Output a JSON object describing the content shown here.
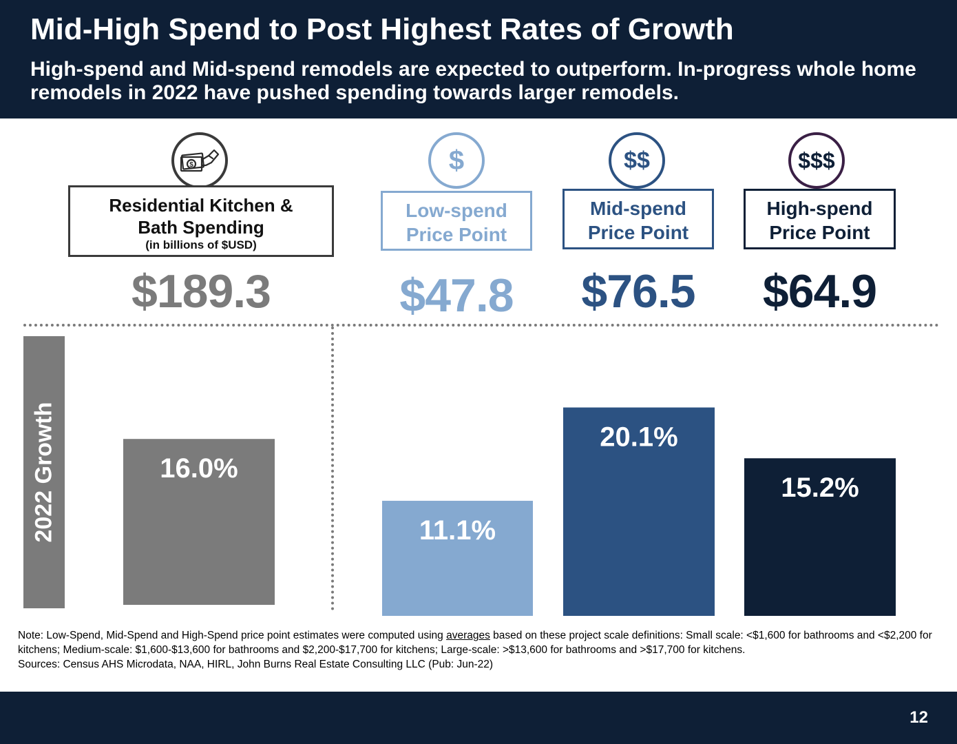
{
  "header": {
    "title": "Mid-High Spend to Post Highest Rates of Growth",
    "subtitle": "High-spend and Mid-spend remodels are expected to outperform. In-progress whole home remodels in 2022 have pushed spending towards larger remodels."
  },
  "colors": {
    "navy": "#0e1f36",
    "gray": "#7b7b7b",
    "low": "#85a9d0",
    "mid": "#2c5282",
    "high": "#0e1f36"
  },
  "categories": [
    {
      "key": "total",
      "icon": "money-hand-icon",
      "label_line1": "Residential Kitchen &",
      "label_line2": "Bath Spending",
      "label_note": "(in billions of $USD)",
      "value": "$189.3"
    },
    {
      "key": "low",
      "icon_text": "$",
      "label_line1": "Low-spend",
      "label_line2": "Price Point",
      "value": "$47.8"
    },
    {
      "key": "mid",
      "icon_text": "$$",
      "label_line1": "Mid-spend",
      "label_line2": "Price Point",
      "value": "$76.5"
    },
    {
      "key": "high",
      "icon_text": "$$$",
      "label_line1": "High-spend",
      "label_line2": "Price Point",
      "value": "$64.9"
    }
  ],
  "growth_label": "2022 Growth",
  "chart_data": {
    "type": "bar",
    "categories": [
      "Residential Kitchen & Bath Spending",
      "Low-spend Price Point",
      "Mid-spend Price Point",
      "High-spend Price Point"
    ],
    "values": [
      16.0,
      11.1,
      20.1,
      15.2
    ],
    "value_labels": [
      "16.0%",
      "11.1%",
      "20.1%",
      "15.2%"
    ],
    "colors": [
      "#7b7b7b",
      "#85a9d0",
      "#2c5282",
      "#0e1f36"
    ],
    "ylim": [
      0,
      26
    ],
    "grid": false
  },
  "note": {
    "prefix": "Note: Low-Spend, Mid-Spend and High-Spend price point estimates were computed using ",
    "underlined": "averages",
    "suffix": " based on these project scale definitions: Small scale: <$1,600 for bathrooms and <$2,200 for kitchens; Medium-scale: $1,600-$13,600 for bathrooms and $2,200-$17,700 for kitchens; Large-scale: >$13,600 for bathrooms and >$17,700 for kitchens.",
    "sources": "Sources: Census AHS Microdata, NAA, HIRL, John Burns Real Estate Consulting LLC (Pub: Jun-22)"
  },
  "page_number": "12"
}
